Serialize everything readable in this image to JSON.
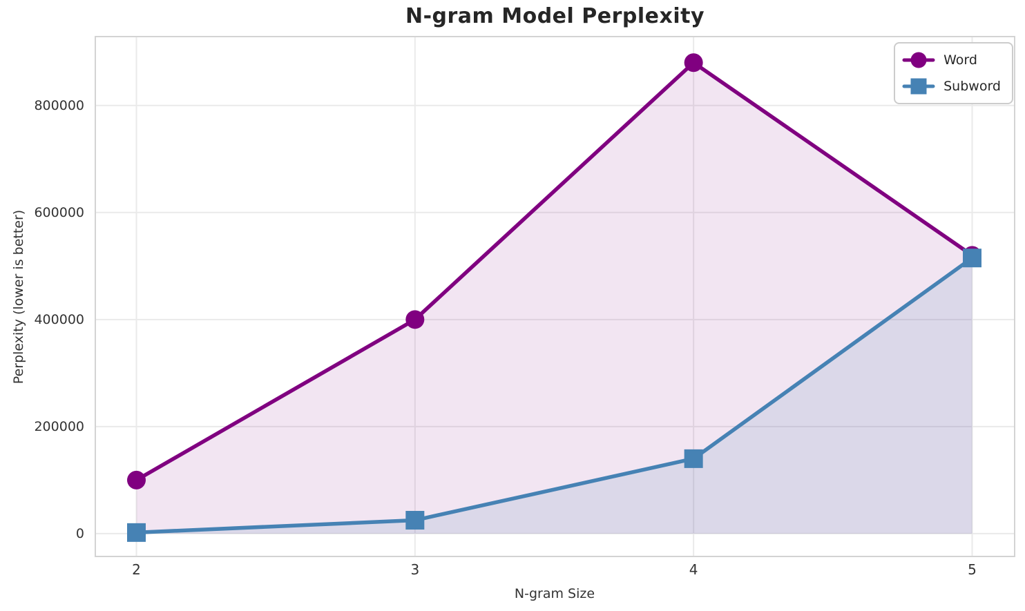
{
  "chart_data": {
    "type": "line",
    "title": "N-gram Model Perplexity",
    "xlabel": "N-gram Size",
    "ylabel": "Perplexity (lower is better)",
    "x": [
      2,
      3,
      4,
      5
    ],
    "xticks": [
      2,
      3,
      4,
      5
    ],
    "yticks": [
      0,
      200000,
      400000,
      600000,
      800000
    ],
    "xlim": [
      1.85,
      5.155
    ],
    "ylim": [
      -44000,
      930000
    ],
    "grid": true,
    "legend_position": "top-right",
    "fill_to_baseline": 0,
    "series": [
      {
        "name": "Word",
        "marker": "circle",
        "color": "#800080",
        "fill": "rgba(128,0,128,0.10)",
        "values": [
          100000,
          400000,
          880000,
          520000
        ]
      },
      {
        "name": "Subword",
        "marker": "square",
        "color": "#4682B4",
        "fill": "rgba(70,130,180,0.13)",
        "values": [
          2000,
          25000,
          140000,
          515000
        ]
      }
    ]
  },
  "colors": {
    "grid": "#EAEAEA",
    "spine": "#D3D3D3",
    "tick_text": "#333333",
    "title_text": "#262626",
    "legend_border": "#CCCCCC",
    "background": "#FFFFFF"
  }
}
